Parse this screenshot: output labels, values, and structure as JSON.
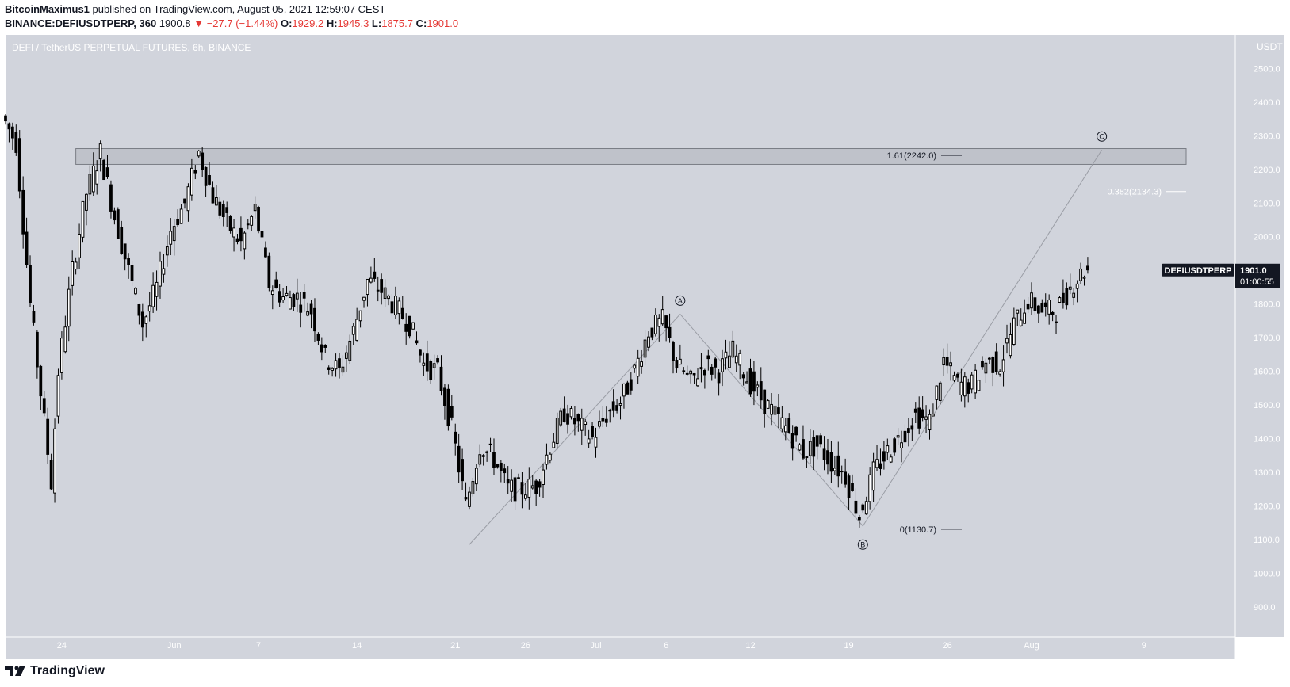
{
  "header": {
    "author": "BitcoinMaximus1",
    "published_text": "published on TradingView.com, August 05, 2021 12:59:07 CEST",
    "symbol": "BINANCE:DEFIUSDTPERP, 360",
    "last": "1900.8",
    "change_arrow": "▼",
    "change": "−27.7 (−1.44%)",
    "o_label": "O:",
    "o_value": "1929.2",
    "h_label": "H:",
    "h_value": "1945.3",
    "l_label": "L:",
    "l_value": "1875.7",
    "c_label": "C:",
    "c_value": "1901.0"
  },
  "chart_data": {
    "type": "candlestick",
    "title": "DEFI / TetherUS PERPETUAL FUTURES, 6h, BINANCE",
    "y_unit": "USDT",
    "y_ticks": [
      2500,
      2400,
      2300,
      2200,
      2100,
      2000,
      1900,
      1800,
      1700,
      1600,
      1500,
      1400,
      1300,
      1200,
      1100,
      1000,
      900
    ],
    "y_tick_labels": [
      "2500.0",
      "2400.0",
      "2300.0",
      "2200.0",
      "2100.0",
      "2000.0",
      "1900.0",
      "1800.0",
      "1700.0",
      "1600.0",
      "1500.0",
      "1400.0",
      "1300.0",
      "1200.0",
      "1100.0",
      "1000.0",
      "900.0"
    ],
    "ylim": [
      810,
      2600
    ],
    "x_labels": [
      "24",
      "Jun",
      "7",
      "14",
      "21",
      "26",
      "Jul",
      "6",
      "12",
      "19",
      "26",
      "Aug",
      "9"
    ],
    "x_label_dates": [
      "2021-05-24",
      "2021-06-01",
      "2021-06-07",
      "2021-06-14",
      "2021-06-21",
      "2021-06-26",
      "2021-07-01",
      "2021-07-06",
      "2021-07-12",
      "2021-07-19",
      "2021-07-26",
      "2021-08-01",
      "2021-08-09"
    ],
    "x_range": [
      "2021-05-20",
      "2021-08-12"
    ],
    "price_path": [
      [
        "2021-05-20",
        2360
      ],
      [
        "2021-05-21",
        2280
      ],
      [
        "2021-05-22",
        1800
      ],
      [
        "2021-05-23",
        1450
      ],
      [
        "2021-05-23T12:00",
        1270
      ],
      [
        "2021-05-24",
        1600
      ],
      [
        "2021-05-25",
        1900
      ],
      [
        "2021-05-26",
        2130
      ],
      [
        "2021-05-27",
        2250
      ],
      [
        "2021-05-28",
        2060
      ],
      [
        "2021-05-29",
        1900
      ],
      [
        "2021-05-30",
        1740
      ],
      [
        "2021-05-31",
        1850
      ],
      [
        "2021-06-01",
        2020
      ],
      [
        "2021-06-02",
        2100
      ],
      [
        "2021-06-03",
        2250
      ],
      [
        "2021-06-04",
        2120
      ],
      [
        "2021-06-05",
        2040
      ],
      [
        "2021-06-06",
        1980
      ],
      [
        "2021-06-07",
        2080
      ],
      [
        "2021-06-08",
        1860
      ],
      [
        "2021-06-09",
        1820
      ],
      [
        "2021-06-10",
        1820
      ],
      [
        "2021-06-11",
        1780
      ],
      [
        "2021-06-12",
        1640
      ],
      [
        "2021-06-13",
        1600
      ],
      [
        "2021-06-14",
        1720
      ],
      [
        "2021-06-15",
        1870
      ],
      [
        "2021-06-16",
        1840
      ],
      [
        "2021-06-17",
        1790
      ],
      [
        "2021-06-18",
        1740
      ],
      [
        "2021-06-19",
        1620
      ],
      [
        "2021-06-20",
        1600
      ],
      [
        "2021-06-21",
        1430
      ],
      [
        "2021-06-22",
        1200
      ],
      [
        "2021-06-23",
        1380
      ],
      [
        "2021-06-24",
        1340
      ],
      [
        "2021-06-25",
        1250
      ],
      [
        "2021-06-26",
        1250
      ],
      [
        "2021-06-27",
        1260
      ],
      [
        "2021-06-28",
        1380
      ],
      [
        "2021-06-29",
        1480
      ],
      [
        "2021-06-30",
        1440
      ],
      [
        "2021-07-01",
        1400
      ],
      [
        "2021-07-02",
        1470
      ],
      [
        "2021-07-03",
        1510
      ],
      [
        "2021-07-04",
        1600
      ],
      [
        "2021-07-05",
        1720
      ],
      [
        "2021-07-06",
        1750
      ],
      [
        "2021-07-07",
        1620
      ],
      [
        "2021-07-08",
        1570
      ],
      [
        "2021-07-09",
        1620
      ],
      [
        "2021-07-10",
        1600
      ],
      [
        "2021-07-11",
        1660
      ],
      [
        "2021-07-12",
        1580
      ],
      [
        "2021-07-13",
        1520
      ],
      [
        "2021-07-14",
        1470
      ],
      [
        "2021-07-15",
        1420
      ],
      [
        "2021-07-16",
        1360
      ],
      [
        "2021-07-17",
        1380
      ],
      [
        "2021-07-18",
        1330
      ],
      [
        "2021-07-19",
        1290
      ],
      [
        "2021-07-20",
        1170
      ],
      [
        "2021-07-21",
        1300
      ],
      [
        "2021-07-22",
        1360
      ],
      [
        "2021-07-23",
        1410
      ],
      [
        "2021-07-24",
        1470
      ],
      [
        "2021-07-25",
        1450
      ],
      [
        "2021-07-26",
        1630
      ],
      [
        "2021-07-27",
        1560
      ],
      [
        "2021-07-28",
        1560
      ],
      [
        "2021-07-29",
        1630
      ],
      [
        "2021-07-30",
        1620
      ],
      [
        "2021-07-31",
        1740
      ],
      [
        "2021-08-01",
        1810
      ],
      [
        "2021-08-02",
        1780
      ],
      [
        "2021-08-03",
        1780
      ],
      [
        "2021-08-04",
        1850
      ],
      [
        "2021-08-05",
        1901
      ]
    ],
    "resistance_zone": {
      "from_date": "2021-05-25",
      "to_date": "2021-08-12",
      "low": 2215,
      "high": 2262
    },
    "fib_levels": [
      {
        "label": "1.61(2242.0)",
        "price": 2242.0
      },
      {
        "label": "0.382(2134.3)",
        "price": 2134.3
      },
      {
        "label": "0(1130.7)",
        "price": 1130.7
      }
    ],
    "wave_line": [
      [
        "2021-06-22",
        1085
      ],
      [
        "2021-07-07",
        1770
      ],
      [
        "2021-07-20",
        1140
      ],
      [
        "2021-08-06",
        2258
      ]
    ],
    "wave_labels": [
      {
        "text": "A",
        "date": "2021-07-07",
        "price": 1810
      },
      {
        "text": "B",
        "date": "2021-07-20",
        "price": 1085
      },
      {
        "text": "C",
        "date": "2021-08-06",
        "price": 2298
      }
    ],
    "current_price": {
      "label": "DEFIUSDTPERP",
      "value": "1901.0",
      "countdown": "01:00:55",
      "price": 1901.0
    }
  },
  "brand": {
    "name": "TradingView"
  },
  "colors": {
    "plot_bg": "#d1d4dc",
    "candle": "#000000",
    "zone_fill": "#bfc2ca",
    "zone_border": "#7a7d85",
    "price_tag_bg": "#131722"
  }
}
